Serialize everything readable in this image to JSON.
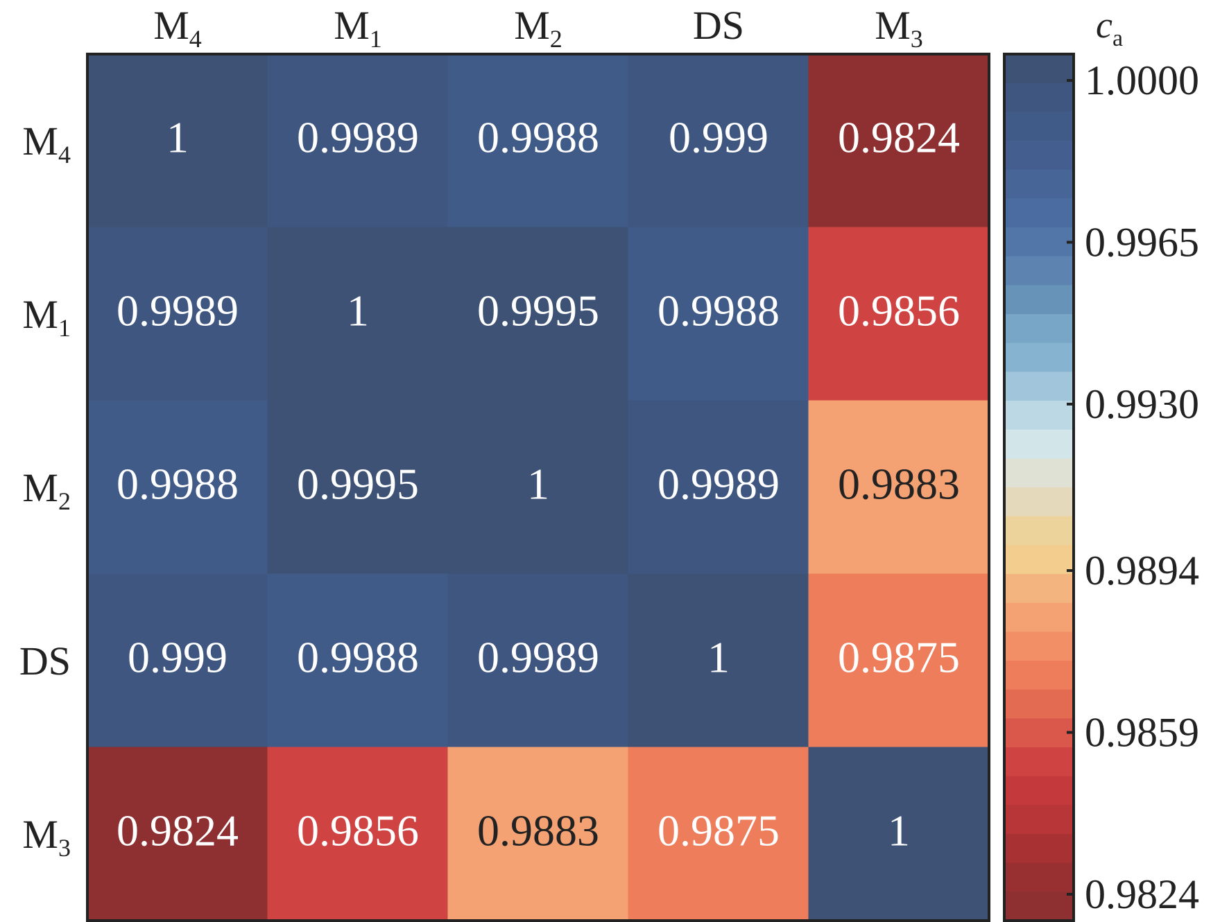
{
  "chart_data": {
    "type": "heatmap",
    "title": "",
    "columns": [
      {
        "base": "M",
        "sub": "4"
      },
      {
        "base": "M",
        "sub": "1"
      },
      {
        "base": "M",
        "sub": "2"
      },
      {
        "base": "DS",
        "sub": ""
      },
      {
        "base": "M",
        "sub": "3"
      }
    ],
    "rows": [
      {
        "base": "M",
        "sub": "4"
      },
      {
        "base": "M",
        "sub": "1"
      },
      {
        "base": "M",
        "sub": "2"
      },
      {
        "base": "DS",
        "sub": ""
      },
      {
        "base": "M",
        "sub": "3"
      }
    ],
    "values": [
      [
        1,
        0.9989,
        0.9988,
        0.999,
        0.9824
      ],
      [
        0.9989,
        1,
        0.9995,
        0.9988,
        0.9856
      ],
      [
        0.9988,
        0.9995,
        1,
        0.9989,
        0.9883
      ],
      [
        0.999,
        0.9988,
        0.9989,
        1,
        0.9875
      ],
      [
        0.9824,
        0.9856,
        0.9883,
        0.9875,
        1
      ]
    ],
    "cell_labels": [
      [
        "1",
        "0.9989",
        "0.9988",
        "0.999",
        "0.9824"
      ],
      [
        "0.9989",
        "1",
        "0.9995",
        "0.9988",
        "0.9856"
      ],
      [
        "0.9988",
        "0.9995",
        "1",
        "0.9989",
        "0.9883"
      ],
      [
        "0.999",
        "0.9988",
        "0.9989",
        "1",
        "0.9875"
      ],
      [
        "0.9824",
        "0.9856",
        "0.9883",
        "0.9875",
        "1"
      ]
    ],
    "colorbar": {
      "label_base": "c",
      "label_sub": "a",
      "range": [
        0.9824,
        1.0
      ],
      "ticks": [
        1.0,
        0.9965,
        0.993,
        0.9894,
        0.9859,
        0.9824
      ],
      "tick_labels": [
        "1.0000",
        "0.9965",
        "0.9930",
        "0.9894",
        "0.9859",
        "0.9824"
      ],
      "colors_top_to_bottom": [
        "#3d5275",
        "#3f5680",
        "#415b88",
        "#445f8f",
        "#486597",
        "#4b6ca0",
        "#5376a8",
        "#5d84b0",
        "#6893b9",
        "#77a6c6",
        "#86b3cf",
        "#a1c5da",
        "#bcd8e4",
        "#d2e6ea",
        "#dfe1d4",
        "#e4d9bb",
        "#ecd29b",
        "#f3cd8e",
        "#f4b47f",
        "#f4a273",
        "#f38f67",
        "#ee7d5c",
        "#e26b52",
        "#d9574b",
        "#cf4443",
        "#c43a3c",
        "#b83538",
        "#a83133",
        "#983032",
        "#8e2f31"
      ],
      "position": "right"
    },
    "dark_text_color": "#222222",
    "light_text_color": "#ffffff",
    "frame_color": "#222222",
    "grid": false
  }
}
